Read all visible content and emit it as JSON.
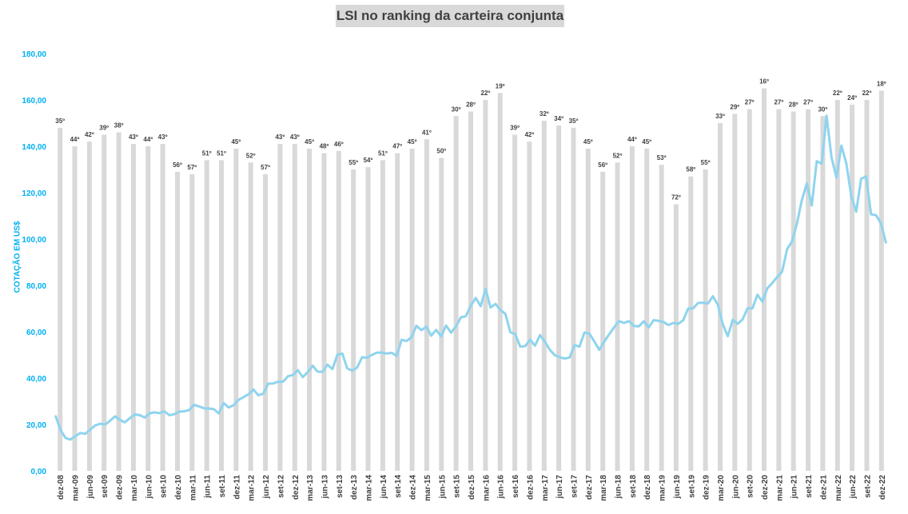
{
  "chart_data": {
    "type": "bar+line",
    "title": "LSI no ranking da carteira conjunta",
    "xlabel": "",
    "ylabel": "COTAÇÃO EM US$",
    "ylim": [
      0,
      180
    ],
    "yticks": [
      "0,00",
      "20,00",
      "40,00",
      "60,00",
      "80,00",
      "100,00",
      "120,00",
      "140,00",
      "160,00",
      "180,00"
    ],
    "colors": {
      "bars": "#d9d9d9",
      "line": "#8fd4ee",
      "axis_text": "#00b0f0"
    },
    "grid": false,
    "categories": [
      "dez-08",
      "mar-09",
      "jun-09",
      "set-09",
      "dez-09",
      "mar-10",
      "jun-10",
      "set-10",
      "dez-10",
      "mar-11",
      "jun-11",
      "set-11",
      "dez-11",
      "mar-12",
      "jun-12",
      "set-12",
      "dez-12",
      "mar-13",
      "jun-13",
      "set-13",
      "dez-13",
      "mar-14",
      "jun-14",
      "set-14",
      "dez-14",
      "mar-15",
      "jun-15",
      "set-15",
      "dez-15",
      "mar-16",
      "jun-16",
      "set-16",
      "dez-16",
      "mar-17",
      "jun-17",
      "set-17",
      "dez-17",
      "mar-18",
      "jun-18",
      "set-18",
      "dez-18",
      "mar-19",
      "jun-19",
      "set-19",
      "dez-19",
      "mar-20",
      "jun-20",
      "set-20",
      "dez-20",
      "mar-21",
      "jun-21",
      "set-21",
      "dez-21",
      "mar-22",
      "jun-22",
      "set-22",
      "dez-22"
    ],
    "bars": {
      "name": "ranking",
      "ranks": [
        "35º",
        "44º",
        "42º",
        "39º",
        "38º",
        "43º",
        "44º",
        "43º",
        "56º",
        "57º",
        "51º",
        "51º",
        "45º",
        "52º",
        "57º",
        "43º",
        "43º",
        "45º",
        "48º",
        "46º",
        "55º",
        "54º",
        "51º",
        "47º",
        "45º",
        "41º",
        "50º",
        "30º",
        "28º",
        "22º",
        "19º",
        "39º",
        "42º",
        "32º",
        "34º",
        "35º",
        "45º",
        "56º",
        "52º",
        "44º",
        "45º",
        "53º",
        "72º",
        "58º",
        "55º",
        "33º",
        "29º",
        "27º",
        "16º",
        "27º",
        "28º",
        "27º",
        "30º",
        "22º",
        "24º",
        "22º",
        "18º"
      ],
      "heights": [
        148,
        140,
        142,
        145,
        146,
        141,
        140,
        141,
        129,
        128,
        134,
        134,
        139,
        133,
        128,
        141,
        141,
        139,
        137,
        138,
        130,
        131,
        134,
        137,
        139,
        143,
        135,
        153,
        155,
        160,
        163,
        145,
        142,
        151,
        149,
        148,
        139,
        129,
        133,
        140,
        139,
        132,
        115,
        127,
        130,
        150,
        154,
        156,
        165,
        156,
        155,
        156,
        153,
        160,
        158,
        160,
        164
      ]
    },
    "line": {
      "name": "cotação",
      "values": [
        23.5,
        17.5,
        14.2,
        13.5,
        15.0,
        16.3,
        16.0,
        17.8,
        19.6,
        20.3,
        20.0,
        21.6,
        23.5,
        22.0,
        20.9,
        22.7,
        24.3,
        24.0,
        23.0,
        24.8,
        25.2,
        24.9,
        25.7,
        24.0,
        24.4,
        25.5,
        25.7,
        26.2,
        28.5,
        27.8,
        27.0,
        26.9,
        26.6,
        24.8,
        29.2,
        27.3,
        28.3,
        30.6,
        31.8,
        33.0,
        35.1,
        32.6,
        33.3,
        37.6,
        37.7,
        38.4,
        38.4,
        40.8,
        41.3,
        43.4,
        40.4,
        42.6,
        45.3,
        42.8,
        42.7,
        45.8,
        43.9,
        50.1,
        50.6,
        44.2,
        43.2,
        44.5,
        49.0,
        48.8,
        50.0,
        51.0,
        51.0,
        50.6,
        50.9,
        49.6,
        56.5,
        56.0,
        57.6,
        62.6,
        60.7,
        62.2,
        58.3,
        60.8,
        58.0,
        62.7,
        59.6,
        62.3,
        66.2,
        66.7,
        71.2,
        74.6,
        71.0,
        78.5,
        70.5,
        72.0,
        69.4,
        67.7,
        59.8,
        59.0,
        53.6,
        53.8,
        56.6,
        54.0,
        58.6,
        55.7,
        52.2,
        49.9,
        49.0,
        48.4,
        48.9,
        54.2,
        53.6,
        59.7,
        59.2,
        55.8,
        52.2,
        55.7,
        58.9,
        61.9,
        64.6,
        63.8,
        64.6,
        62.5,
        62.3,
        64.5,
        61.9,
        65.0,
        64.7,
        64.2,
        62.9,
        63.8,
        63.4,
        65.0,
        70.0,
        70.1,
        72.4,
        72.5,
        72.2,
        75.3,
        71.7,
        63.2,
        58.1,
        65.1,
        63.4,
        65.3,
        70.1,
        70.1,
        76.0,
        73.0,
        78.7,
        81.0,
        83.6,
        85.9,
        95.6,
        99.0,
        106.6,
        116.8,
        124.0,
        114.5,
        133.6,
        132.5,
        153.2,
        135.2,
        126.5,
        140.3,
        132.5,
        118.5,
        111.8,
        126.0,
        127.0,
        110.6,
        110.3,
        106.8,
        98.5
      ]
    }
  }
}
